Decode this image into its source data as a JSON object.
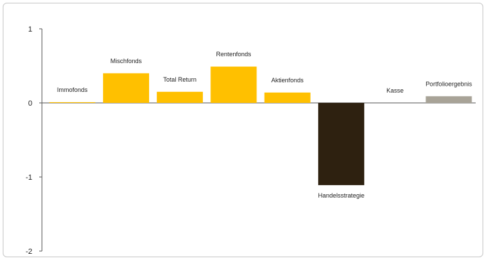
{
  "chart_data": {
    "type": "bar",
    "title": "",
    "xlabel": "",
    "ylabel": "",
    "categories": [
      "Immofonds",
      "Mischfonds",
      "Total Return",
      "Rentenfonds",
      "Aktienfonds",
      "Handelsstrategie",
      "Kasse",
      "Portfolioergebnis"
    ],
    "values": [
      0.01,
      0.4,
      0.15,
      0.49,
      0.14,
      -1.11,
      0.0,
      0.09
    ],
    "bar_colors": [
      "#FFC000",
      "#FFC000",
      "#FFC000",
      "#FFC000",
      "#FFC000",
      "#2E2110",
      "#FFC000",
      "#A8A397"
    ],
    "ylim": [
      -2,
      1
    ],
    "yticks": [
      "1",
      "0",
      "-1",
      "-2"
    ],
    "grid": false,
    "legend": "none"
  }
}
